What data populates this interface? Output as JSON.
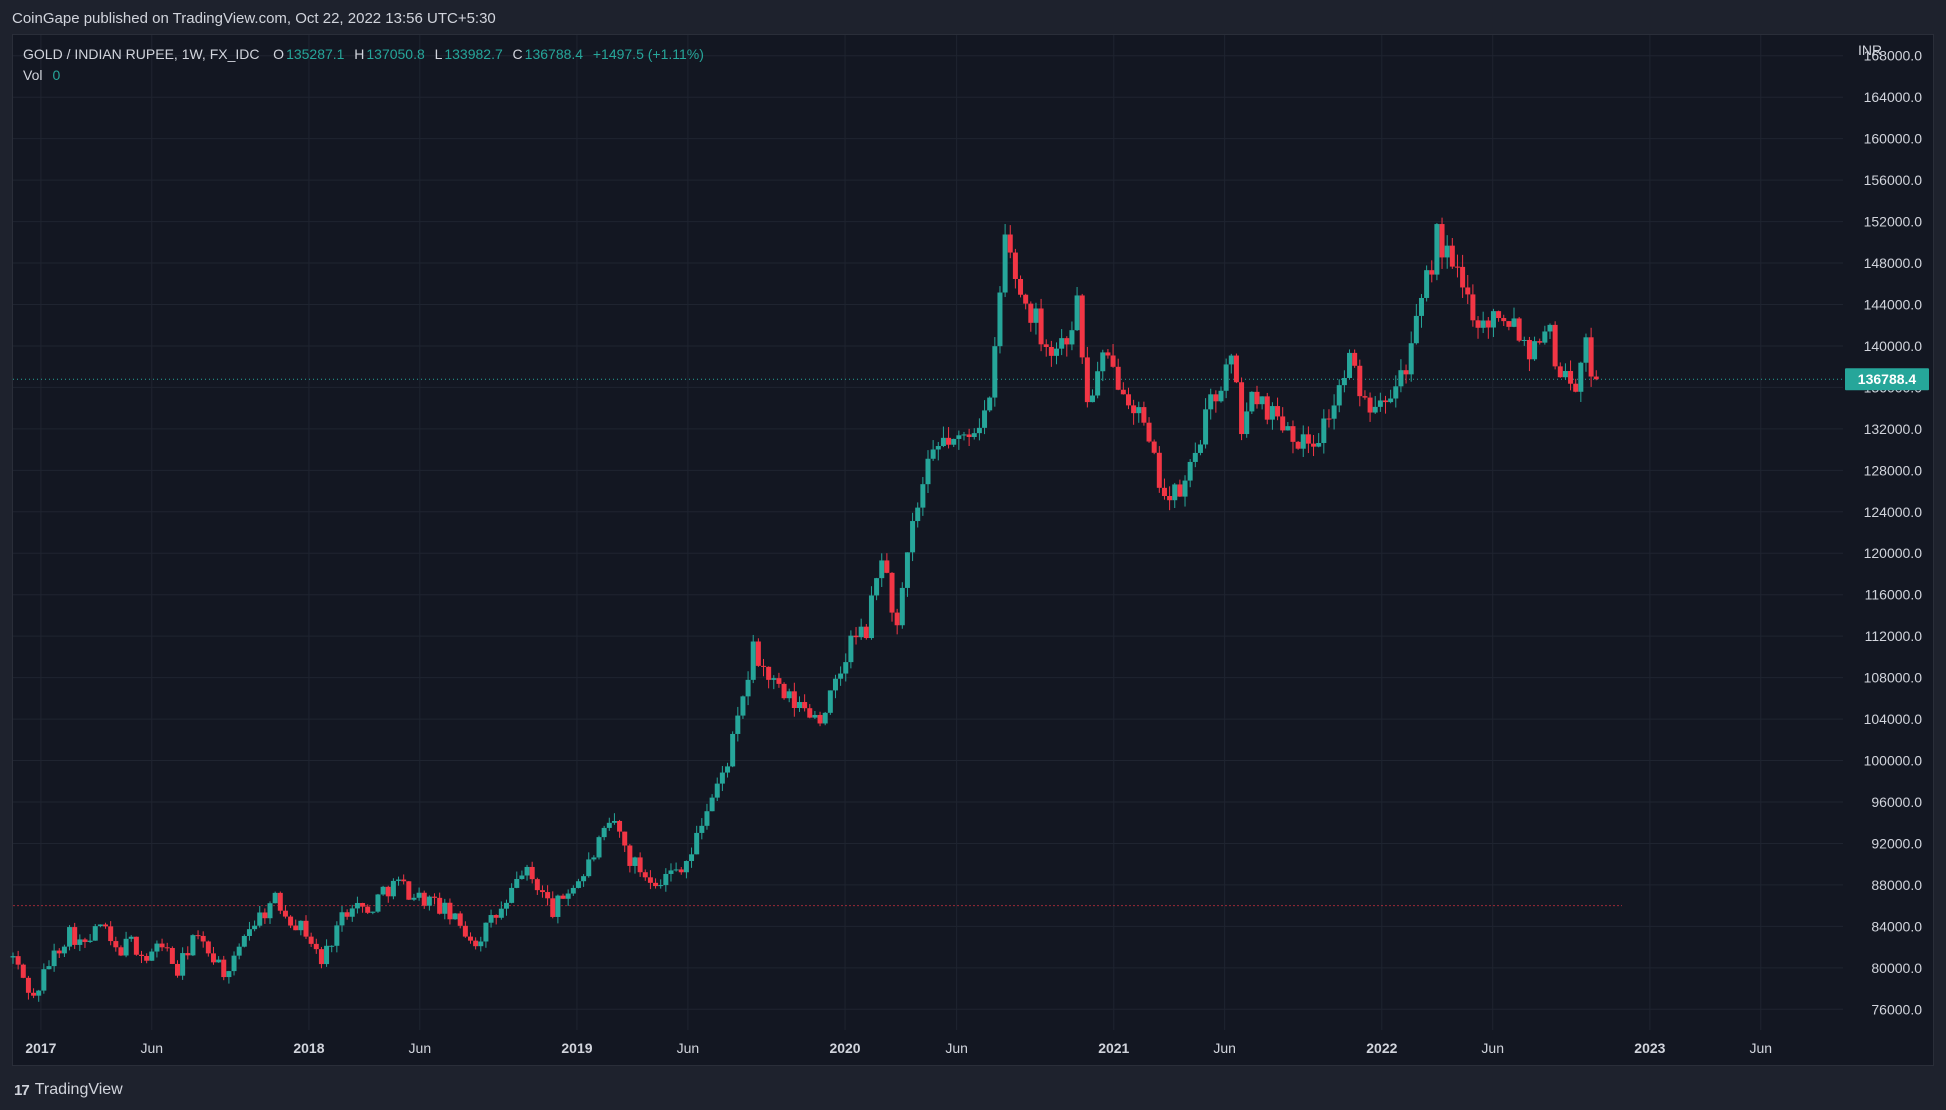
{
  "header": {
    "published": "CoinGape published on TradingView.com, Oct 22, 2022 13:56 UTC+5:30"
  },
  "legend": {
    "symbol": "GOLD / INDIAN RUPEE, 1W, FX_IDC",
    "o_label": "O",
    "o_value": "135287.1",
    "h_label": "H",
    "h_value": "137050.8",
    "l_label": "L",
    "l_value": "133982.7",
    "c_label": "C",
    "c_value": "136788.4",
    "change": "+1497.5 (+1.11%)",
    "vol_label": "Vol",
    "vol_value": "0"
  },
  "footer": {
    "logo": "17",
    "brand": "TradingView"
  },
  "colors": {
    "up": "#26a69a",
    "down": "#f23645",
    "background": "#131722",
    "grid": "#1f2430",
    "text": "#d1d4dc"
  },
  "chart_data": {
    "type": "candlestick",
    "title": "GOLD / INDIAN RUPEE, 1W, FX_IDC",
    "ylabel": "INR",
    "ylim": [
      74000,
      170000
    ],
    "y_ticks": [
      "168000.0",
      "164000.0",
      "160000.0",
      "156000.0",
      "152000.0",
      "148000.0",
      "144000.0",
      "140000.0",
      "136000.0",
      "132000.0",
      "128000.0",
      "124000.0",
      "120000.0",
      "116000.0",
      "112000.0",
      "108000.0",
      "104000.0",
      "100000.0",
      "96000.0",
      "92000.0",
      "88000.0",
      "84000.0",
      "80000.0",
      "76000.0"
    ],
    "x_ticks": [
      {
        "label": "2017",
        "date": "2017-01-01",
        "bold": true
      },
      {
        "label": "Jun",
        "date": "2017-06-01",
        "bold": false
      },
      {
        "label": "2018",
        "date": "2018-01-01",
        "bold": true
      },
      {
        "label": "Jun",
        "date": "2018-06-01",
        "bold": false
      },
      {
        "label": "2019",
        "date": "2019-01-01",
        "bold": true
      },
      {
        "label": "Jun",
        "date": "2019-06-01",
        "bold": false
      },
      {
        "label": "2020",
        "date": "2020-01-01",
        "bold": true
      },
      {
        "label": "Jun",
        "date": "2020-06-01",
        "bold": false
      },
      {
        "label": "2021",
        "date": "2021-01-01",
        "bold": true
      },
      {
        "label": "Jun",
        "date": "2021-06-01",
        "bold": false
      },
      {
        "label": "2022",
        "date": "2022-01-01",
        "bold": true
      },
      {
        "label": "Jun",
        "date": "2022-06-01",
        "bold": false
      },
      {
        "label": "2023",
        "date": "2023-01-01",
        "bold": true
      },
      {
        "label": "Jun",
        "date": "2023-06-01",
        "bold": false
      }
    ],
    "x_range": [
      "2016-11-24",
      "2023-09-21"
    ],
    "last_price": "136788.4",
    "last_price_value": 136788.4,
    "dotted_level": 86000,
    "grid": true,
    "path": [
      [
        "2016-11-24",
        81000
      ],
      [
        "2016-12-22",
        77000
      ],
      [
        "2017-01-12",
        80500
      ],
      [
        "2017-02-09",
        83500
      ],
      [
        "2017-03-02",
        82000
      ],
      [
        "2017-03-23",
        84200
      ],
      [
        "2017-04-13",
        81500
      ],
      [
        "2017-05-04",
        82500
      ],
      [
        "2017-05-25",
        80800
      ],
      [
        "2017-06-15",
        82500
      ],
      [
        "2017-07-06",
        79500
      ],
      [
        "2017-07-27",
        83000
      ],
      [
        "2017-08-24",
        81200
      ],
      [
        "2017-09-14",
        79000
      ],
      [
        "2017-10-05",
        83500
      ],
      [
        "2017-10-26",
        85000
      ],
      [
        "2017-11-16",
        86500
      ],
      [
        "2017-12-07",
        84800
      ],
      [
        "2017-12-28",
        83500
      ],
      [
        "2018-01-18",
        80500
      ],
      [
        "2018-02-08",
        84000
      ],
      [
        "2018-03-01",
        86500
      ],
      [
        "2018-03-22",
        85200
      ],
      [
        "2018-04-12",
        87500
      ],
      [
        "2018-05-03",
        88200
      ],
      [
        "2018-05-24",
        87000
      ],
      [
        "2018-06-14",
        86500
      ],
      [
        "2018-07-05",
        85500
      ],
      [
        "2018-07-26",
        84000
      ],
      [
        "2018-08-16",
        82500
      ],
      [
        "2018-09-06",
        84500
      ],
      [
        "2018-09-27",
        86000
      ],
      [
        "2018-10-18",
        89500
      ],
      [
        "2018-11-08",
        88000
      ],
      [
        "2018-11-29",
        85500
      ],
      [
        "2018-12-20",
        87500
      ],
      [
        "2019-01-10",
        89000
      ],
      [
        "2019-01-31",
        92000
      ],
      [
        "2019-02-21",
        94000
      ],
      [
        "2019-03-14",
        90500
      ],
      [
        "2019-04-04",
        89000
      ],
      [
        "2019-04-25",
        88500
      ],
      [
        "2019-05-16",
        89500
      ],
      [
        "2019-06-06",
        91000
      ],
      [
        "2019-06-27",
        95500
      ],
      [
        "2019-07-18",
        98500
      ],
      [
        "2019-08-08",
        103500
      ],
      [
        "2019-08-29",
        110500
      ],
      [
        "2019-09-19",
        108000
      ],
      [
        "2019-10-10",
        106000
      ],
      [
        "2019-11-07",
        105000
      ],
      [
        "2019-11-28",
        104200
      ],
      [
        "2019-12-19",
        107000
      ],
      [
        "2020-01-09",
        111500
      ],
      [
        "2020-01-30",
        112500
      ],
      [
        "2020-02-20",
        120000
      ],
      [
        "2020-03-12",
        112500
      ],
      [
        "2020-04-02",
        122500
      ],
      [
        "2020-04-23",
        128000
      ],
      [
        "2020-05-14",
        131000
      ],
      [
        "2020-06-04",
        130500
      ],
      [
        "2020-06-25",
        132500
      ],
      [
        "2020-07-16",
        134000
      ],
      [
        "2020-08-06",
        150500
      ],
      [
        "2020-08-27",
        145000
      ],
      [
        "2020-09-17",
        142500
      ],
      [
        "2020-10-08",
        139500
      ],
      [
        "2020-10-29",
        141000
      ],
      [
        "2020-11-12",
        144000
      ],
      [
        "2020-11-26",
        134500
      ],
      [
        "2020-12-17",
        138500
      ],
      [
        "2021-01-14",
        136500
      ],
      [
        "2021-02-04",
        133500
      ],
      [
        "2021-02-25",
        128500
      ],
      [
        "2021-03-18",
        125000
      ],
      [
        "2021-04-08",
        126500
      ],
      [
        "2021-04-29",
        131500
      ],
      [
        "2021-05-20",
        135500
      ],
      [
        "2021-06-10",
        138500
      ],
      [
        "2021-06-24",
        132500
      ],
      [
        "2021-07-15",
        135500
      ],
      [
        "2021-08-05",
        133500
      ],
      [
        "2021-08-26",
        132500
      ],
      [
        "2021-09-16",
        130500
      ],
      [
        "2021-10-07",
        131500
      ],
      [
        "2021-10-28",
        134500
      ],
      [
        "2021-11-18",
        138500
      ],
      [
        "2021-12-09",
        134500
      ],
      [
        "2021-12-30",
        135500
      ],
      [
        "2022-01-20",
        136500
      ],
      [
        "2022-02-10",
        139500
      ],
      [
        "2022-03-03",
        146000
      ],
      [
        "2022-03-17",
        150500
      ],
      [
        "2022-04-07",
        147500
      ],
      [
        "2022-04-28",
        144500
      ],
      [
        "2022-05-19",
        142000
      ],
      [
        "2022-06-09",
        143500
      ],
      [
        "2022-06-30",
        142500
      ],
      [
        "2022-07-21",
        139500
      ],
      [
        "2022-08-11",
        142500
      ],
      [
        "2022-09-01",
        137500
      ],
      [
        "2022-09-22",
        136500
      ],
      [
        "2022-10-06",
        139500
      ],
      [
        "2022-10-20",
        136788
      ]
    ]
  }
}
